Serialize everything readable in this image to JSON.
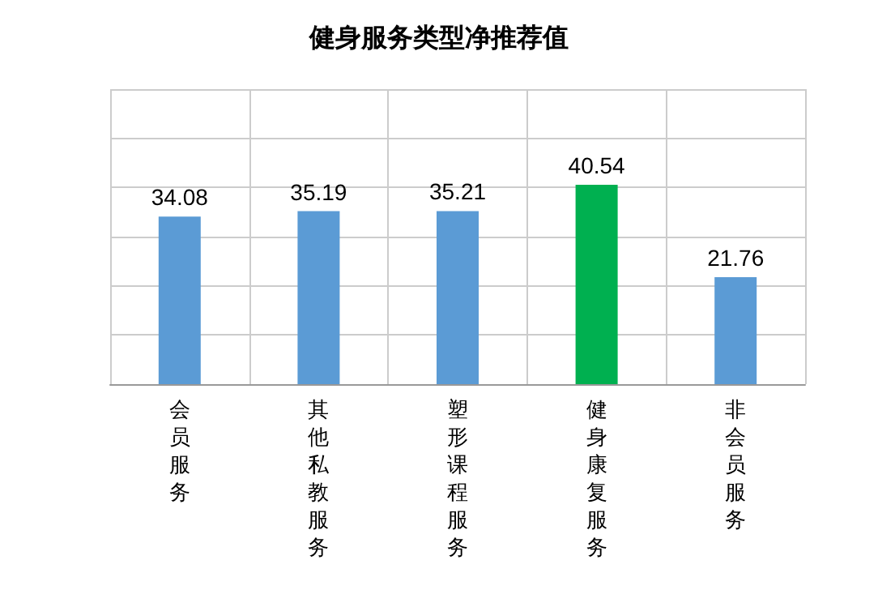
{
  "chart_data": {
    "type": "bar",
    "title": "健身服务类型净推荐值",
    "categories": [
      "会员服务",
      "其他私教服务",
      "塑形课程服务",
      "健身康复服务",
      "非会员服务"
    ],
    "values": [
      34.08,
      35.19,
      35.21,
      40.54,
      21.76
    ],
    "colors": [
      "#5b9bd5",
      "#5b9bd5",
      "#5b9bd5",
      "#00b050",
      "#5b9bd5"
    ],
    "ylim": [
      0,
      60
    ],
    "yticks": [
      {
        "value": 0,
        "label": null
      },
      {
        "value": 10,
        "label": null
      },
      {
        "value": 20,
        "label": null
      },
      {
        "value": 30,
        "label": null
      },
      {
        "value": 40,
        "label": null
      },
      {
        "value": 50,
        "label": null
      },
      {
        "value": 60,
        "label": null
      }
    ],
    "tick_labels": "x",
    "grid": true,
    "data_labels": true
  }
}
